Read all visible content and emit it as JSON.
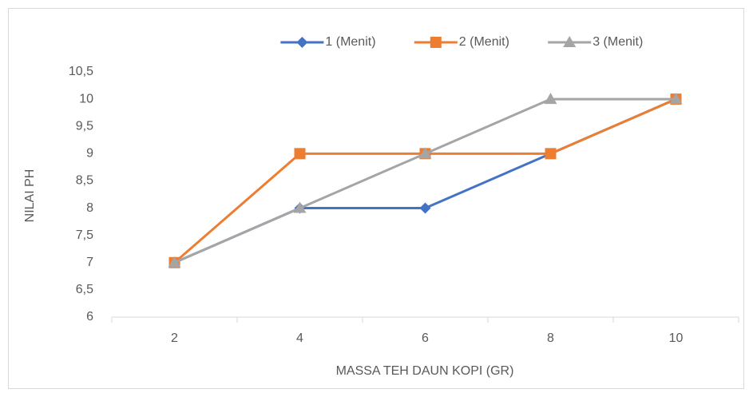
{
  "chart_data": {
    "type": "line",
    "categories": [
      "2",
      "4",
      "6",
      "8",
      "10"
    ],
    "series": [
      {
        "name": "1 (Menit)",
        "color": "#4472c4",
        "marker": "diamond",
        "values": [
          7,
          8,
          8,
          9,
          10
        ]
      },
      {
        "name": "2 (Menit)",
        "color": "#ed7d31",
        "marker": "square",
        "values": [
          7,
          9,
          9,
          9,
          10
        ]
      },
      {
        "name": "3 (Menit)",
        "color": "#a5a5a5",
        "marker": "triangle",
        "values": [
          7,
          8,
          9,
          10,
          10
        ]
      }
    ],
    "x_label": "MASSA TEH DAUN KOPI (GR)",
    "y_label": "NILAI PH",
    "ylim": [
      6,
      10.5
    ],
    "yticks": [
      6,
      {
        "value": 6.5,
        "label": "6,5"
      },
      7,
      {
        "value": 7.5,
        "label": "7,5"
      },
      8,
      {
        "value": 8.5,
        "label": "8,5"
      },
      9,
      {
        "value": 9.5,
        "label": "9,5"
      },
      10,
      {
        "value": 10.5,
        "label": "10,5"
      }
    ],
    "grid": false,
    "legend": "top"
  }
}
